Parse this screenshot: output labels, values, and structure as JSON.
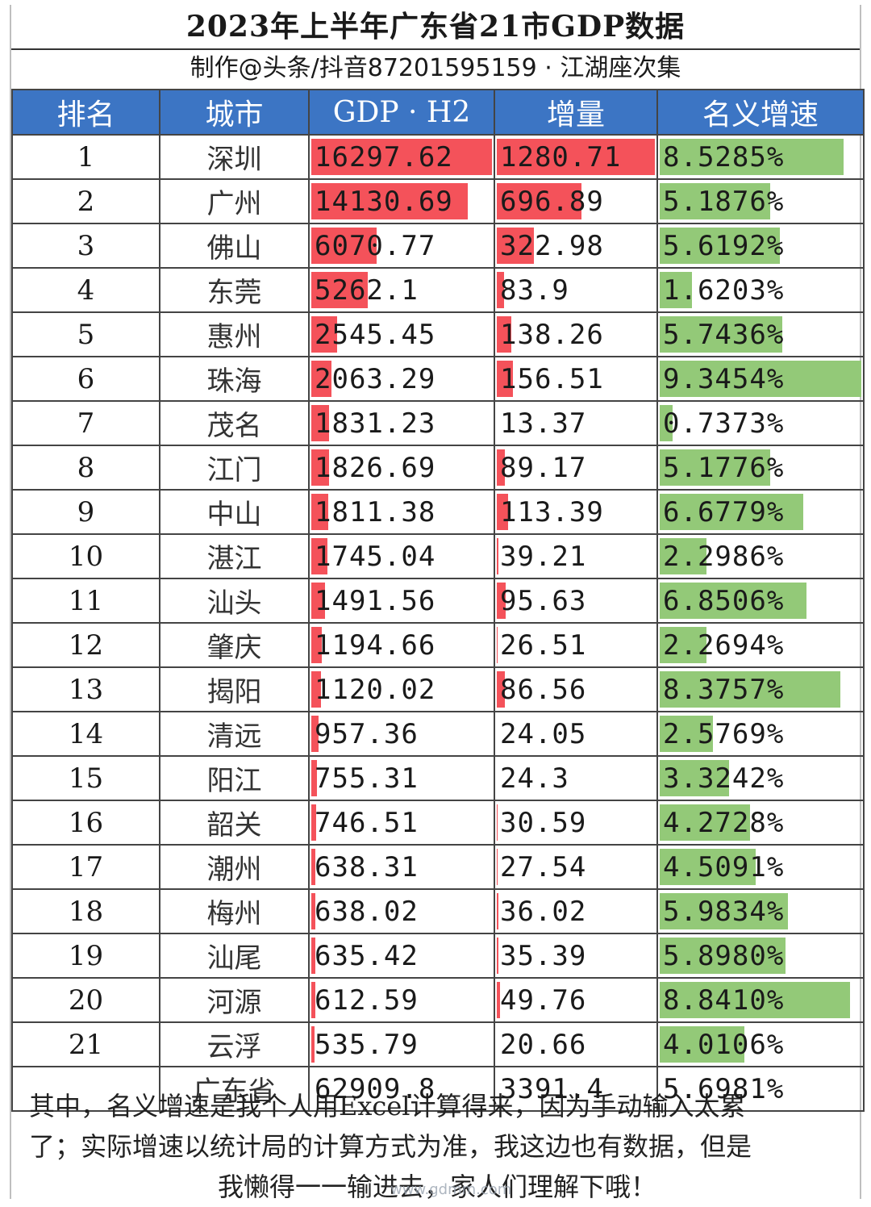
{
  "title": "2023年上半年广东省21市GDP数据",
  "subtitle": "制作@头条/抖音87201595159 · 江湖座次集",
  "headers": [
    "排名",
    "城市",
    "GDP · H2",
    "增量",
    "名义增速"
  ],
  "colors": {
    "header_bg": "#3c75c4",
    "bar_red": "#f4525a",
    "bar_green": "#93c978"
  },
  "rows": [
    {
      "rank": "1",
      "city": "深圳",
      "gdp": "16297.62",
      "increase": "1280.71",
      "growth": "8.5285%",
      "gdp_v": 16297.62,
      "inc_v": 1280.71,
      "growth_v": 8.5285
    },
    {
      "rank": "2",
      "city": "广州",
      "gdp": "14130.69",
      "increase": "696.89",
      "growth": "5.1876%",
      "gdp_v": 14130.69,
      "inc_v": 696.89,
      "growth_v": 5.1876
    },
    {
      "rank": "3",
      "city": "佛山",
      "gdp": "6070.77",
      "increase": "322.98",
      "growth": "5.6192%",
      "gdp_v": 6070.77,
      "inc_v": 322.98,
      "growth_v": 5.6192
    },
    {
      "rank": "4",
      "city": "东莞",
      "gdp": "5262.1",
      "increase": "83.9",
      "growth": "1.6203%",
      "gdp_v": 5262.1,
      "inc_v": 83.9,
      "growth_v": 1.6203
    },
    {
      "rank": "5",
      "city": "惠州",
      "gdp": "2545.45",
      "increase": "138.26",
      "growth": "5.7436%",
      "gdp_v": 2545.45,
      "inc_v": 138.26,
      "growth_v": 5.7436
    },
    {
      "rank": "6",
      "city": "珠海",
      "gdp": "2063.29",
      "increase": "156.51",
      "growth": "9.3454%",
      "gdp_v": 2063.29,
      "inc_v": 156.51,
      "growth_v": 9.3454
    },
    {
      "rank": "7",
      "city": "茂名",
      "gdp": "1831.23",
      "increase": "13.37",
      "growth": "0.7373%",
      "gdp_v": 1831.23,
      "inc_v": 13.37,
      "growth_v": 0.7373
    },
    {
      "rank": "8",
      "city": "江门",
      "gdp": "1826.69",
      "increase": "89.17",
      "growth": "5.1776%",
      "gdp_v": 1826.69,
      "inc_v": 89.17,
      "growth_v": 5.1776
    },
    {
      "rank": "9",
      "city": "中山",
      "gdp": "1811.38",
      "increase": "113.39",
      "growth": "6.6779%",
      "gdp_v": 1811.38,
      "inc_v": 113.39,
      "growth_v": 6.6779
    },
    {
      "rank": "10",
      "city": "湛江",
      "gdp": "1745.04",
      "increase": "39.21",
      "growth": "2.2986%",
      "gdp_v": 1745.04,
      "inc_v": 39.21,
      "growth_v": 2.2986
    },
    {
      "rank": "11",
      "city": "汕头",
      "gdp": "1491.56",
      "increase": "95.63",
      "growth": "6.8506%",
      "gdp_v": 1491.56,
      "inc_v": 95.63,
      "growth_v": 6.8506
    },
    {
      "rank": "12",
      "city": "肇庆",
      "gdp": "1194.66",
      "increase": "26.51",
      "growth": "2.2694%",
      "gdp_v": 1194.66,
      "inc_v": 26.51,
      "growth_v": 2.2694
    },
    {
      "rank": "13",
      "city": "揭阳",
      "gdp": "1120.02",
      "increase": "86.56",
      "growth": "8.3757%",
      "gdp_v": 1120.02,
      "inc_v": 86.56,
      "growth_v": 8.3757
    },
    {
      "rank": "14",
      "city": "清远",
      "gdp": "957.36",
      "increase": "24.05",
      "growth": "2.5769%",
      "gdp_v": 957.36,
      "inc_v": 24.05,
      "growth_v": 2.5769
    },
    {
      "rank": "15",
      "city": "阳江",
      "gdp": "755.31",
      "increase": "24.3",
      "growth": "3.3242%",
      "gdp_v": 755.31,
      "inc_v": 24.3,
      "growth_v": 3.3242
    },
    {
      "rank": "16",
      "city": "韶关",
      "gdp": "746.51",
      "increase": "30.59",
      "growth": "4.2728%",
      "gdp_v": 746.51,
      "inc_v": 30.59,
      "growth_v": 4.2728
    },
    {
      "rank": "17",
      "city": "潮州",
      "gdp": "638.31",
      "increase": "27.54",
      "growth": "4.5091%",
      "gdp_v": 638.31,
      "inc_v": 27.54,
      "growth_v": 4.5091
    },
    {
      "rank": "18",
      "city": "梅州",
      "gdp": "638.02",
      "increase": "36.02",
      "growth": "5.9834%",
      "gdp_v": 638.02,
      "inc_v": 36.02,
      "growth_v": 5.9834
    },
    {
      "rank": "19",
      "city": "汕尾",
      "gdp": "635.42",
      "increase": "35.39",
      "growth": "5.8980%",
      "gdp_v": 635.42,
      "inc_v": 35.39,
      "growth_v": 5.898
    },
    {
      "rank": "20",
      "city": "河源",
      "gdp": "612.59",
      "increase": "49.76",
      "growth": "8.8410%",
      "gdp_v": 612.59,
      "inc_v": 49.76,
      "growth_v": 8.841
    },
    {
      "rank": "21",
      "city": "云浮",
      "gdp": "535.79",
      "increase": "20.66",
      "growth": "4.0106%",
      "gdp_v": 535.79,
      "inc_v": 20.66,
      "growth_v": 4.0106
    }
  ],
  "total": {
    "rank": "",
    "city": "广东省",
    "gdp": "62909.8",
    "increase": "3391.4",
    "growth": "5.6981%"
  },
  "note_lines": [
    "其中，名义增速是我个人用Excel计算得来，因为手动输入太累",
    "了；实际增速以统计局的计算方式为准，我这边也有数据，但是",
    "我懒得一一输进去，家人们理解下哦！"
  ],
  "watermark": "www.gdmm.com"
}
